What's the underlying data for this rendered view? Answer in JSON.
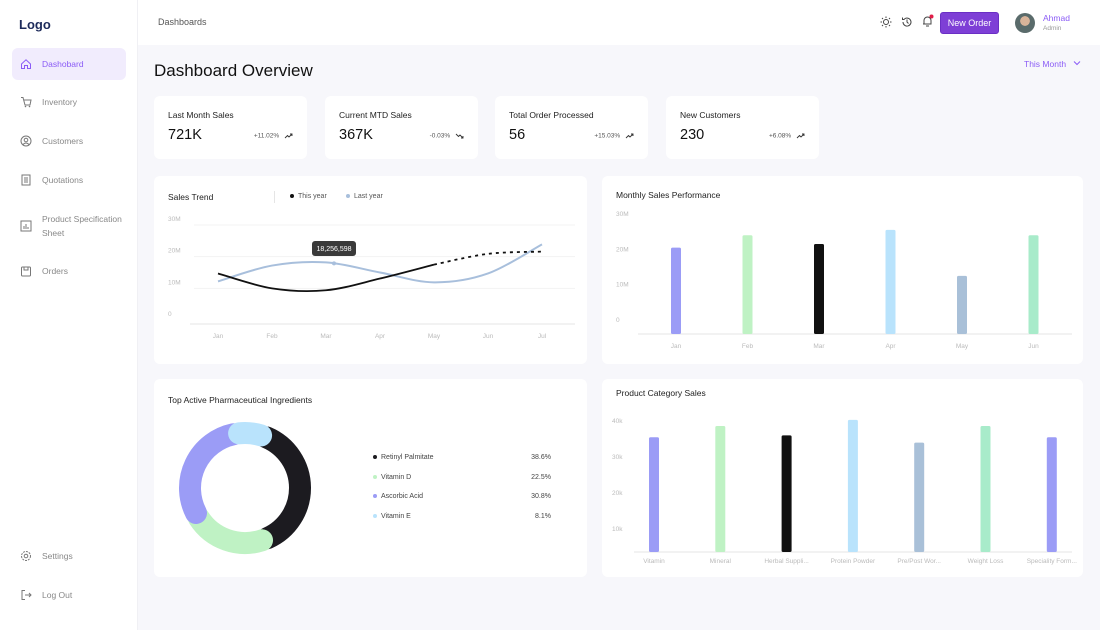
{
  "sidebar": {
    "logo": "Logo",
    "items": [
      {
        "label": "Dashobard",
        "icon": "home-icon",
        "active": true
      },
      {
        "label": "Inventory",
        "icon": "cart-icon"
      },
      {
        "label": "Customers",
        "icon": "user-icon"
      },
      {
        "label": "Quotations",
        "icon": "document-icon"
      },
      {
        "label": "Product Specification Sheet",
        "icon": "bar-chart-icon"
      },
      {
        "label": "Orders",
        "icon": "box-icon"
      }
    ],
    "settings": "Settings",
    "logout": "Log Out"
  },
  "header": {
    "breadcrumb": "Dashboards",
    "new_order": "New Order",
    "user_name": "Ahmad",
    "user_role": "Admin",
    "notification_color": "#e11d48"
  },
  "page": {
    "title": "Dashboard Overview",
    "period": "This Month"
  },
  "kpis": [
    {
      "title": "Last Month Sales",
      "value": "721K",
      "change": "+11.02%",
      "trend": "up"
    },
    {
      "title": "Current MTD Sales",
      "value": "367K",
      "change": "-0.03%",
      "trend": "down"
    },
    {
      "title": "Total Order Processed",
      "value": "56",
      "change": "+15.03%",
      "trend": "up"
    },
    {
      "title": "New Customers",
      "value": "230",
      "change": "+6.08%",
      "trend": "up"
    }
  ],
  "chart_data": [
    {
      "type": "line",
      "title": "Sales Trend",
      "categories": [
        "Jan",
        "Feb",
        "Mar",
        "Apr",
        "May",
        "Jun",
        "Jul"
      ],
      "yticks": [
        "0",
        "10M",
        "20M",
        "30M"
      ],
      "ylim": [
        0,
        30000000
      ],
      "series": [
        {
          "name": "This year",
          "color": "#111111",
          "values": [
            12800000,
            8100000,
            7500000,
            11200000,
            15600000,
            19000000,
            19700000
          ],
          "projected_from": "May"
        },
        {
          "name": "Last year",
          "color": "#a8bfdc",
          "values": [
            10300000,
            15300000,
            16300000,
            13100000,
            10000000,
            12800000,
            22000000
          ]
        }
      ],
      "tooltip": "18,256,598"
    },
    {
      "type": "bar",
      "title": "Monthly Sales Performance",
      "categories": [
        "Jan",
        "Feb",
        "Mar",
        "Apr",
        "May",
        "Jun"
      ],
      "yticks": [
        "0",
        "10M",
        "20M",
        "30M"
      ],
      "ylim": [
        0,
        30000000
      ],
      "values": [
        20500000,
        24000000,
        21500000,
        25500000,
        12500000,
        24000000
      ],
      "colors": [
        "#9b9cf6",
        "#bff2c4",
        "#111111",
        "#b9e3fc",
        "#a9c0d8",
        "#a8ebca"
      ]
    },
    {
      "type": "pie",
      "title": "Top Active Pharmaceutical Ingredients",
      "labels": [
        "Retinyl Palmitate",
        "Vitamin D",
        "Ascorbic Acid",
        "Vitamin E"
      ],
      "display": [
        "38.6%",
        "22.5%",
        "30.8%",
        "8.1%"
      ],
      "values": [
        38.6,
        22.5,
        30.8,
        8.1
      ],
      "colors": [
        "#1c1b20",
        "#bff2c4",
        "#9b9cf6",
        "#b9e3fc"
      ]
    },
    {
      "type": "bar",
      "title": "Product Category Sales",
      "categories": [
        "Vitamin",
        "Mineral",
        "Herbal Suppli...",
        "Protein Powder",
        "Pre/Post Wor...",
        "Weight Loss",
        "Speciality Form..."
      ],
      "yticks": [
        "10k",
        "20k",
        "30k",
        "40k"
      ],
      "ylim": [
        0,
        40000
      ],
      "values": [
        35500,
        38600,
        36000,
        40300,
        34000,
        38600,
        35500
      ],
      "colors": [
        "#9b9cf6",
        "#bff2c4",
        "#111111",
        "#b9e3fc",
        "#a9c0d8",
        "#a8ebca",
        "#9b9cf6"
      ]
    }
  ]
}
